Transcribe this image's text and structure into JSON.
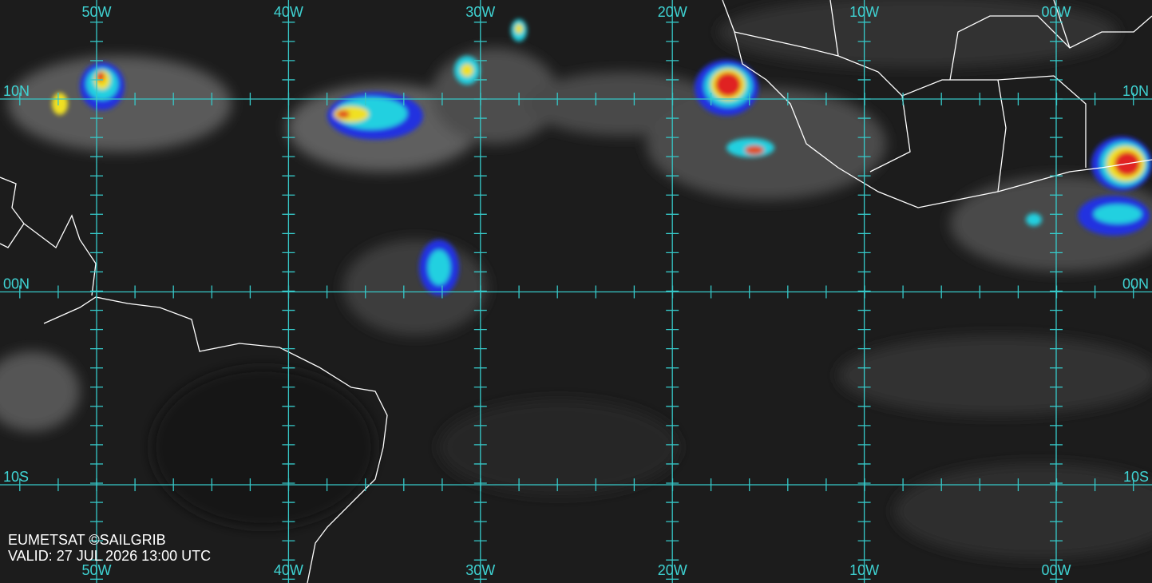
{
  "map": {
    "longitude_labels": [
      "50W",
      "40W",
      "30W",
      "20W",
      "10W",
      "00W"
    ],
    "latitude_labels": [
      "10N",
      "00N",
      "10S"
    ],
    "credit": "EUMETSAT ©SAILGRIB",
    "valid": "VALID:  27 JUL 2026 13:00 UTC"
  }
}
